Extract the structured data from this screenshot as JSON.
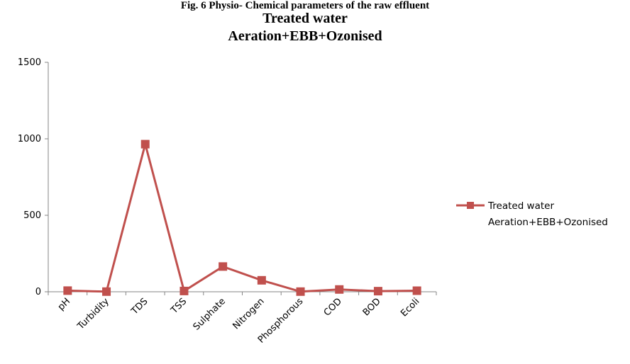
{
  "figure": {
    "caption": "Fig. 6 Physio- Chemical parameters of the raw effluent"
  },
  "chart_data": {
    "type": "line",
    "title_lines": [
      "Treated water",
      "Aeration+EBB+Ozonised"
    ],
    "categories": [
      "pH",
      "Turbidity",
      "TDS",
      "TSS",
      "Sulphate",
      "Nitrogen",
      "Phosphorous",
      "COD",
      "BOD",
      "Ecoli"
    ],
    "series": [
      {
        "name_lines": [
          "Treated water",
          "Aeration+EBB+Ozonised"
        ],
        "color": "#c0504d",
        "marker": "square",
        "values": [
          7.5,
          1,
          965,
          5,
          165,
          75,
          1,
          15,
          4,
          7
        ]
      }
    ],
    "y_ticks": [
      0,
      500,
      1000,
      1500
    ],
    "ylim": [
      0,
      1500
    ],
    "grid": false,
    "legend_position": "right"
  }
}
